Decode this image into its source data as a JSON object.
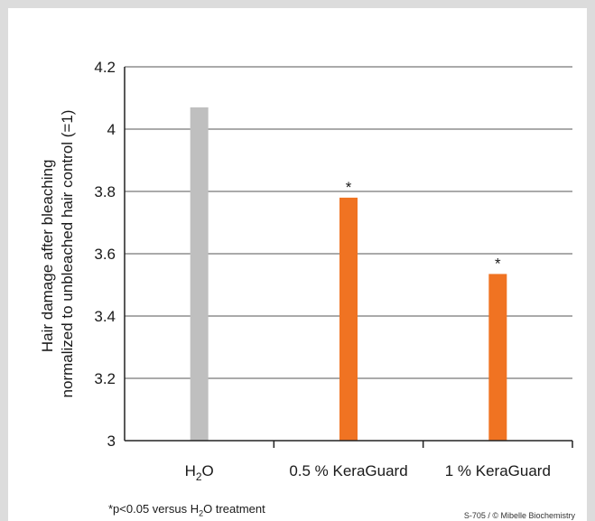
{
  "chart_data": {
    "type": "bar",
    "categories": [
      "H2O",
      "0.5 % KeraGuard",
      "1 % KeraGuard"
    ],
    "category_labels": [
      {
        "main": "H",
        "sub": "2",
        "rest": "O"
      },
      {
        "main": "0.5 % KeraGuard",
        "sub": "",
        "rest": ""
      },
      {
        "main": "1 % KeraGuard",
        "sub": "",
        "rest": ""
      }
    ],
    "values": [
      4.07,
      3.78,
      3.535
    ],
    "colors": [
      "#bfbfbf",
      "#f07322",
      "#f07322"
    ],
    "annotations": [
      "",
      "*",
      "*"
    ],
    "ylabel": [
      "Hair damage after bleaching",
      "normalized to unbleached hair control (=1)"
    ],
    "ylim": [
      3,
      4.2
    ],
    "yticks": [
      3,
      3.2,
      3.4,
      3.6,
      3.8,
      4,
      4.2
    ],
    "ytick_labels": [
      "3",
      "3.2",
      "3.4",
      "3.6",
      "3.8",
      "4",
      "4.2"
    ],
    "grid": true
  },
  "footnote": {
    "prefix": "*p<0.05 versus H",
    "sub": "2",
    "suffix": "O treatment"
  },
  "credit": "S-705 / © Mibelle Biochemistry"
}
